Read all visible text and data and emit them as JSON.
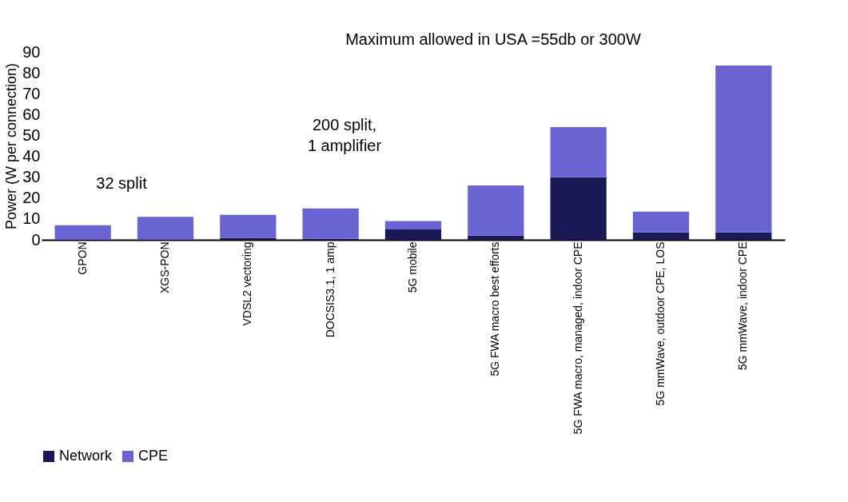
{
  "chart_data": {
    "type": "bar",
    "stacked": true,
    "ylabel": "Power (W per connection)",
    "categories": [
      "GPON",
      "XGS-PON",
      "VDSL2 vectoring",
      "DOCSIS3.1, 1 amp",
      "5G mobile",
      "5G FWA macro best efforts",
      "5G FWA macro, managed, indoor CPE",
      "5G mmWave, outdoor CPE, LOS",
      "5G mmWave, indoor CPE"
    ],
    "series": [
      {
        "name": "Network",
        "color": "#1b1856",
        "values": [
          0,
          0,
          1,
          0.5,
          5,
          2,
          30,
          3.5,
          3.5
        ]
      },
      {
        "name": "CPE",
        "color": "#6a63d2",
        "values": [
          7,
          11,
          11,
          14.5,
          4,
          24,
          24,
          10,
          80
        ]
      }
    ],
    "ylim": [
      0,
      90
    ],
    "yticks": [
      0,
      10,
      20,
      30,
      40,
      50,
      60,
      70,
      80,
      90
    ],
    "grid": false,
    "legend": "bottom",
    "annotations": [
      "32 split",
      "200 split, 1 amplifier",
      "Maximum allowed in USA =55db or 300W"
    ]
  }
}
